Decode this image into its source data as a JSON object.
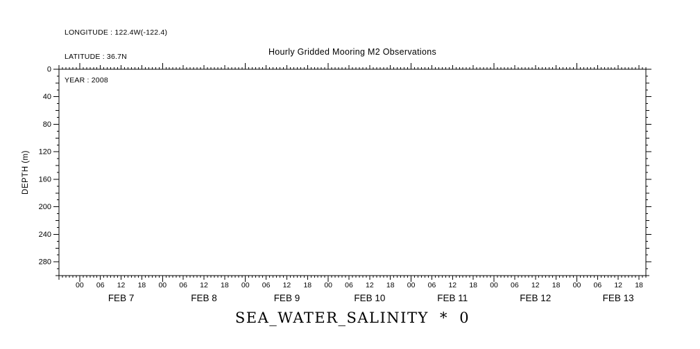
{
  "meta": {
    "longitude": "LONGITUDE : 122.4W(-122.4)",
    "latitude": "LATITUDE : 36.7N",
    "year": "YEAR : 2008"
  },
  "chart_data": {
    "type": "line",
    "title": "Hourly Gridded Mooring M2 Observations",
    "xlabel": "SEA_WATER_SALINITY * 0",
    "ylabel": "DEPTH (m)",
    "grid": false,
    "x_axis": {
      "days": [
        "FEB 7",
        "FEB 8",
        "FEB 9",
        "FEB 10",
        "FEB 11",
        "FEB 12",
        "FEB 13"
      ],
      "hour_tick_labels": [
        "00",
        "06",
        "12",
        "18"
      ],
      "total_hours": 170,
      "start_offset_hours": 6,
      "minor_tick_every_hours": 1,
      "medium_tick_every_hours": 6,
      "major_tick_every_hours": 24
    },
    "y_axis": {
      "min": 0,
      "max": 300,
      "direction": "down",
      "tick_labels": [
        0,
        40,
        80,
        120,
        160,
        200,
        240,
        280
      ],
      "minor_step": 10,
      "medium_step": 20,
      "major_step": 40
    },
    "series": [],
    "colors": {
      "axis": "#000000",
      "background": "#ffffff"
    }
  }
}
